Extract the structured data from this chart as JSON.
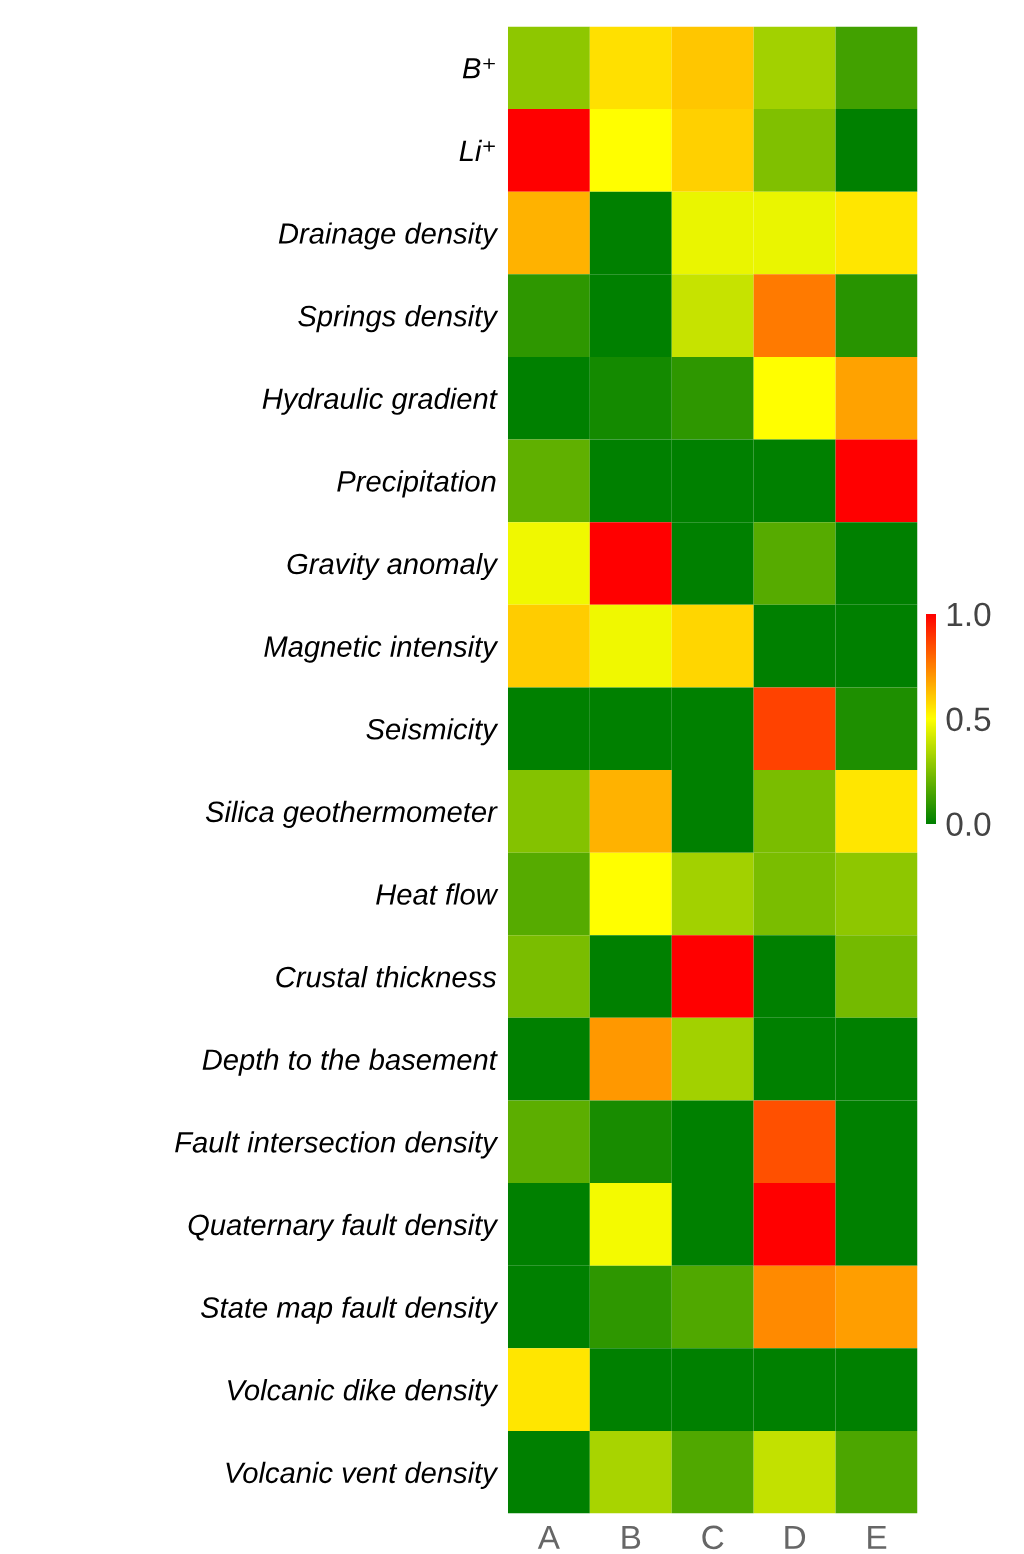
{
  "chart_data": {
    "type": "heatmap",
    "categories": [
      "A",
      "B",
      "C",
      "D",
      "E"
    ],
    "y_categories": [
      "B⁺",
      "Li⁺",
      "Drainage density",
      "Springs density",
      "Hydraulic gradient",
      "Precipitation",
      "Gravity anomaly",
      "Magnetic intensity",
      "Seismicity",
      "Silica geothermometer",
      "Heat flow",
      "Crustal thickness",
      "Depth to the basement",
      "Fault intersection density",
      "Quaternary fault density",
      "State map fault density",
      "Volcanic dike density",
      "Volcanic vent density"
    ],
    "cells": [
      [
        0.28,
        0.56,
        0.61,
        0.32,
        0.13
      ],
      [
        1.0,
        0.5,
        0.59,
        0.25,
        0.0
      ],
      [
        0.65,
        0.0,
        0.46,
        0.46,
        0.55
      ],
      [
        0.09,
        0.0,
        0.39,
        0.76,
        0.08
      ],
      [
        0.0,
        0.04,
        0.09,
        0.5,
        0.68
      ],
      [
        0.19,
        0.0,
        0.0,
        0.0,
        1.0
      ],
      [
        0.47,
        1.0,
        0.0,
        0.17,
        0.0
      ],
      [
        0.6,
        0.47,
        0.58,
        0.0,
        0.0
      ],
      [
        0.0,
        0.0,
        0.0,
        0.87,
        0.06
      ],
      [
        0.26,
        0.65,
        0.0,
        0.24,
        0.55
      ],
      [
        0.17,
        0.5,
        0.32,
        0.24,
        0.28
      ],
      [
        0.24,
        0.0,
        1.0,
        0.0,
        0.23
      ],
      [
        0.0,
        0.7,
        0.32,
        0.0,
        0.0
      ],
      [
        0.18,
        0.05,
        0.0,
        0.84,
        0.0
      ],
      [
        0.0,
        0.48,
        0.0,
        1.0,
        0.0
      ],
      [
        0.0,
        0.09,
        0.16,
        0.73,
        0.69
      ],
      [
        0.55,
        0.0,
        0.0,
        0.0,
        0.0
      ],
      [
        0.0,
        0.33,
        0.16,
        0.38,
        0.15
      ]
    ],
    "clim": [
      0.0,
      1.0
    ],
    "cticks": [
      {
        "value": 0.0,
        "label": "0.0"
      },
      {
        "value": 0.5,
        "label": "0.5"
      },
      {
        "value": 1.0,
        "label": "1.0"
      }
    ]
  }
}
